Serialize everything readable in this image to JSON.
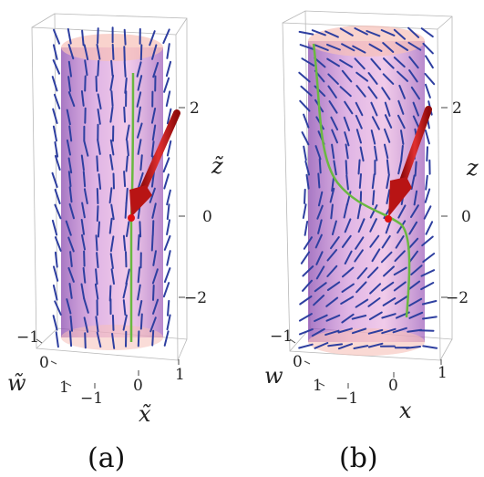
{
  "panels": [
    {
      "caption": "(a)",
      "axis_labels": {
        "vertical": "z̃",
        "front": "x̃",
        "side": "w̃"
      },
      "vertical_ticks": [
        "2",
        "0",
        "−2"
      ],
      "front_ticks": [
        "−1",
        "0",
        "1"
      ],
      "side_ticks": [
        "−1",
        "0",
        "1"
      ]
    },
    {
      "caption": "(b)",
      "axis_labels": {
        "vertical": "z",
        "front": "x",
        "side": "w"
      },
      "vertical_ticks": [
        "2",
        "0",
        "−2"
      ],
      "front_ticks": [
        "−1",
        "0",
        "1"
      ],
      "side_ticks": [
        "−1",
        "0",
        "1"
      ]
    }
  ],
  "colors": {
    "needle": "#2e3fa0",
    "cylinder": "#c070c8",
    "cap": "#f6c0b8",
    "curve": "#6ab840",
    "arrow": "#c01818",
    "point": "#e01010",
    "box": "#b8b8b8"
  }
}
